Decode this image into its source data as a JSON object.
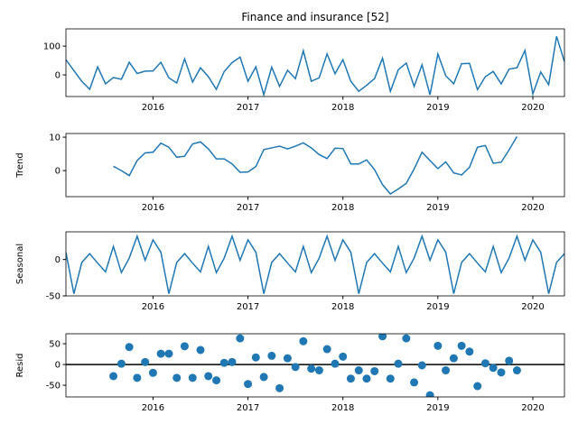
{
  "chart_data": [
    {
      "type": "line",
      "title": "Finance and insurance  [52]",
      "color": "#1f77b4",
      "x": [
        2015.083,
        2015.167,
        2015.25,
        2015.333,
        2015.417,
        2015.5,
        2015.583,
        2015.667,
        2015.75,
        2015.833,
        2015.917,
        2016,
        2016.083,
        2016.167,
        2016.25,
        2016.333,
        2016.417,
        2016.5,
        2016.583,
        2016.667,
        2016.75,
        2016.833,
        2016.917,
        2017,
        2017.083,
        2017.167,
        2017.25,
        2017.333,
        2017.417,
        2017.5,
        2017.583,
        2017.667,
        2017.75,
        2017.833,
        2017.917,
        2018,
        2018.083,
        2018.167,
        2018.25,
        2018.333,
        2018.417,
        2018.5,
        2018.583,
        2018.667,
        2018.75,
        2018.833,
        2018.917,
        2019,
        2019.083,
        2019.167,
        2019.25,
        2019.333,
        2019.417,
        2019.5,
        2019.583,
        2019.667,
        2019.75,
        2019.833,
        2019.917,
        2020,
        2020.083,
        2020.167,
        2020.25,
        2020.333
      ],
      "values": [
        53,
        15,
        -22,
        -50,
        28,
        -31,
        -9,
        -15,
        44,
        5,
        13,
        14,
        44,
        -10,
        -28,
        56,
        -25,
        25,
        -6,
        -50,
        12,
        43,
        62,
        -22,
        28,
        -69,
        27,
        -40,
        16,
        -13,
        84,
        -22,
        -10,
        73,
        4,
        53,
        -22,
        -57,
        -36,
        -13,
        58,
        -57,
        18,
        41,
        -40,
        35,
        -69,
        73,
        -3,
        -31,
        39,
        40,
        -51,
        -6,
        12,
        -31,
        20,
        25,
        85,
        -66,
        10,
        -34,
        134,
        46
      ],
      "xlim": [
        2015.083,
        2020.333
      ],
      "xticks": [
        2016,
        2017,
        2018,
        2019,
        2020
      ],
      "ylim": [
        -75,
        160
      ],
      "yticks": [
        0,
        100
      ]
    },
    {
      "type": "line",
      "ylabel": "Trend",
      "color": "#1f77b4",
      "x": [
        2015.083,
        2015.167,
        2015.25,
        2015.333,
        2015.417,
        2015.5,
        2015.583,
        2015.667,
        2015.75,
        2015.833,
        2015.917,
        2016,
        2016.083,
        2016.167,
        2016.25,
        2016.333,
        2016.417,
        2016.5,
        2016.583,
        2016.667,
        2016.75,
        2016.833,
        2016.917,
        2017,
        2017.083,
        2017.167,
        2017.25,
        2017.333,
        2017.417,
        2017.5,
        2017.583,
        2017.667,
        2017.75,
        2017.833,
        2017.917,
        2018,
        2018.083,
        2018.167,
        2018.25,
        2018.333,
        2018.417,
        2018.5,
        2018.583,
        2018.667,
        2018.75,
        2018.833,
        2018.917,
        2019,
        2019.083,
        2019.167,
        2019.25,
        2019.333,
        2019.417,
        2019.5,
        2019.583,
        2019.667,
        2019.75,
        2019.833,
        2019.917,
        2020,
        2020.083,
        2020.167,
        2020.25,
        2020.333
      ],
      "values": [
        null,
        null,
        null,
        null,
        null,
        null,
        1.3,
        0,
        -1.5,
        3,
        5.3,
        5.5,
        8.2,
        7,
        4,
        4.3,
        8,
        8.6,
        6.5,
        3.5,
        3.5,
        2,
        -0.5,
        -0.4,
        1.2,
        6.3,
        6.8,
        7.3,
        6.5,
        7.3,
        8.3,
        6.8,
        4.8,
        3.6,
        6.7,
        6.6,
        2,
        2,
        3.2,
        0.3,
        -4.2,
        -7,
        -5.5,
        -3.8,
        0.5,
        5.5,
        3,
        0.6,
        2.6,
        -0.7,
        -1.3,
        1,
        7,
        7.5,
        2.2,
        2.5,
        6.2,
        10.2,
        null,
        null,
        null,
        null,
        null,
        null
      ],
      "xlim": [
        2015.083,
        2020.333
      ],
      "xticks": [
        2016,
        2017,
        2018,
        2019,
        2020
      ],
      "ylim": [
        -7.8,
        11.1
      ],
      "yticks": [
        0,
        10
      ]
    },
    {
      "type": "line",
      "ylabel": "Seasonal",
      "color": "#1f77b4",
      "x": [
        2015.083,
        2015.167,
        2015.25,
        2015.333,
        2015.417,
        2015.5,
        2015.583,
        2015.667,
        2015.75,
        2015.833,
        2015.917,
        2016,
        2016.083,
        2016.167,
        2016.25,
        2016.333,
        2016.417,
        2016.5,
        2016.583,
        2016.667,
        2016.75,
        2016.833,
        2016.917,
        2017,
        2017.083,
        2017.167,
        2017.25,
        2017.333,
        2017.417,
        2017.5,
        2017.583,
        2017.667,
        2017.75,
        2017.833,
        2017.917,
        2018,
        2018.083,
        2018.167,
        2018.25,
        2018.333,
        2018.417,
        2018.5,
        2018.583,
        2018.667,
        2018.75,
        2018.833,
        2018.917,
        2019,
        2019.083,
        2019.167,
        2019.25,
        2019.333,
        2019.417,
        2019.5,
        2019.583,
        2019.667,
        2019.75,
        2019.833,
        2019.917,
        2020,
        2020.083,
        2020.167,
        2020.25,
        2020.333
      ],
      "values": [
        10,
        -47,
        -4,
        8,
        -5,
        -17,
        18,
        -18,
        2,
        32,
        -1,
        27,
        10,
        -47,
        -4,
        8,
        -5,
        -17,
        18,
        -18,
        2,
        32,
        -1,
        27,
        10,
        -47,
        -4,
        8,
        -5,
        -17,
        18,
        -18,
        2,
        32,
        -1,
        27,
        10,
        -47,
        -4,
        8,
        -5,
        -17,
        18,
        -18,
        2,
        32,
        -1,
        27,
        10,
        -47,
        -4,
        8,
        -5,
        -17,
        18,
        -18,
        2,
        32,
        -1,
        27,
        10,
        -47,
        -4,
        8
      ],
      "xlim": [
        2015.083,
        2020.333
      ],
      "xticks": [
        2016,
        2017,
        2018,
        2019,
        2020
      ],
      "ylim": [
        -50,
        38
      ],
      "yticks": [
        -50,
        0
      ]
    },
    {
      "type": "scatter",
      "ylabel": "Resid",
      "color": "#1f77b4",
      "hline": 0,
      "x": [
        2015.083,
        2015.167,
        2015.25,
        2015.333,
        2015.417,
        2015.5,
        2015.583,
        2015.667,
        2015.75,
        2015.833,
        2015.917,
        2016,
        2016.083,
        2016.167,
        2016.25,
        2016.333,
        2016.417,
        2016.5,
        2016.583,
        2016.667,
        2016.75,
        2016.833,
        2016.917,
        2017,
        2017.083,
        2017.167,
        2017.25,
        2017.333,
        2017.417,
        2017.5,
        2017.583,
        2017.667,
        2017.75,
        2017.833,
        2017.917,
        2018,
        2018.083,
        2018.167,
        2018.25,
        2018.333,
        2018.417,
        2018.5,
        2018.583,
        2018.667,
        2018.75,
        2018.833,
        2018.917,
        2019,
        2019.083,
        2019.167,
        2019.25,
        2019.333,
        2019.417,
        2019.5,
        2019.583,
        2019.667,
        2019.75,
        2019.833,
        2019.917,
        2020,
        2020.083,
        2020.167,
        2020.25,
        2020.333
      ],
      "values": [
        null,
        null,
        null,
        null,
        null,
        null,
        -28,
        2,
        42,
        -32,
        6,
        -20,
        26,
        26,
        -32,
        44,
        -32,
        35,
        -28,
        -38,
        4,
        6,
        63,
        -47,
        17,
        -30,
        21,
        -57,
        15,
        -6,
        56,
        -10,
        -14,
        37,
        2,
        19,
        -34,
        -14,
        -34,
        -16,
        68,
        -34,
        2,
        63,
        -43,
        -2,
        -74,
        45,
        -14,
        15,
        45,
        31,
        -52,
        3,
        -8,
        -19,
        9,
        -14,
        null,
        null,
        null,
        null,
        null,
        null
      ],
      "xlim": [
        2015.083,
        2020.333
      ],
      "xticks": [
        2016,
        2017,
        2018,
        2019,
        2020
      ],
      "ylim": [
        -78,
        74
      ],
      "yticks": [
        -50,
        0,
        50
      ]
    }
  ]
}
